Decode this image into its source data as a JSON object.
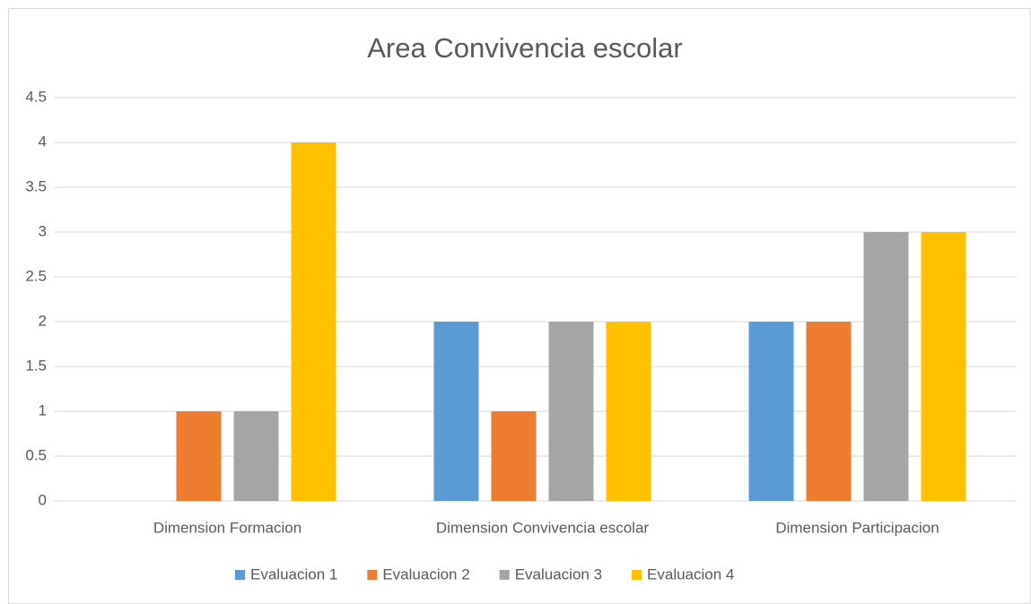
{
  "chart_data": {
    "type": "bar",
    "title": "Area Convivencia escolar",
    "categories": [
      "Dimension Formacion",
      "Dimension Convivencia escolar",
      "Dimension Participacion"
    ],
    "series": [
      {
        "name": "Evaluacion 1",
        "color": "#5b9bd5",
        "values": [
          0,
          2,
          2
        ]
      },
      {
        "name": "Evaluacion 2",
        "color": "#ed7d31",
        "values": [
          1,
          1,
          2
        ]
      },
      {
        "name": "Evaluacion 3",
        "color": "#a5a5a5",
        "values": [
          1,
          2,
          3
        ]
      },
      {
        "name": "Evaluacion 4",
        "color": "#ffc000",
        "values": [
          4,
          2,
          3
        ]
      }
    ],
    "ylim": [
      0,
      4.5
    ],
    "yticks": [
      0,
      0.5,
      1,
      1.5,
      2,
      2.5,
      3,
      3.5,
      4,
      4.5
    ],
    "grid": true,
    "legend": "bottom"
  }
}
